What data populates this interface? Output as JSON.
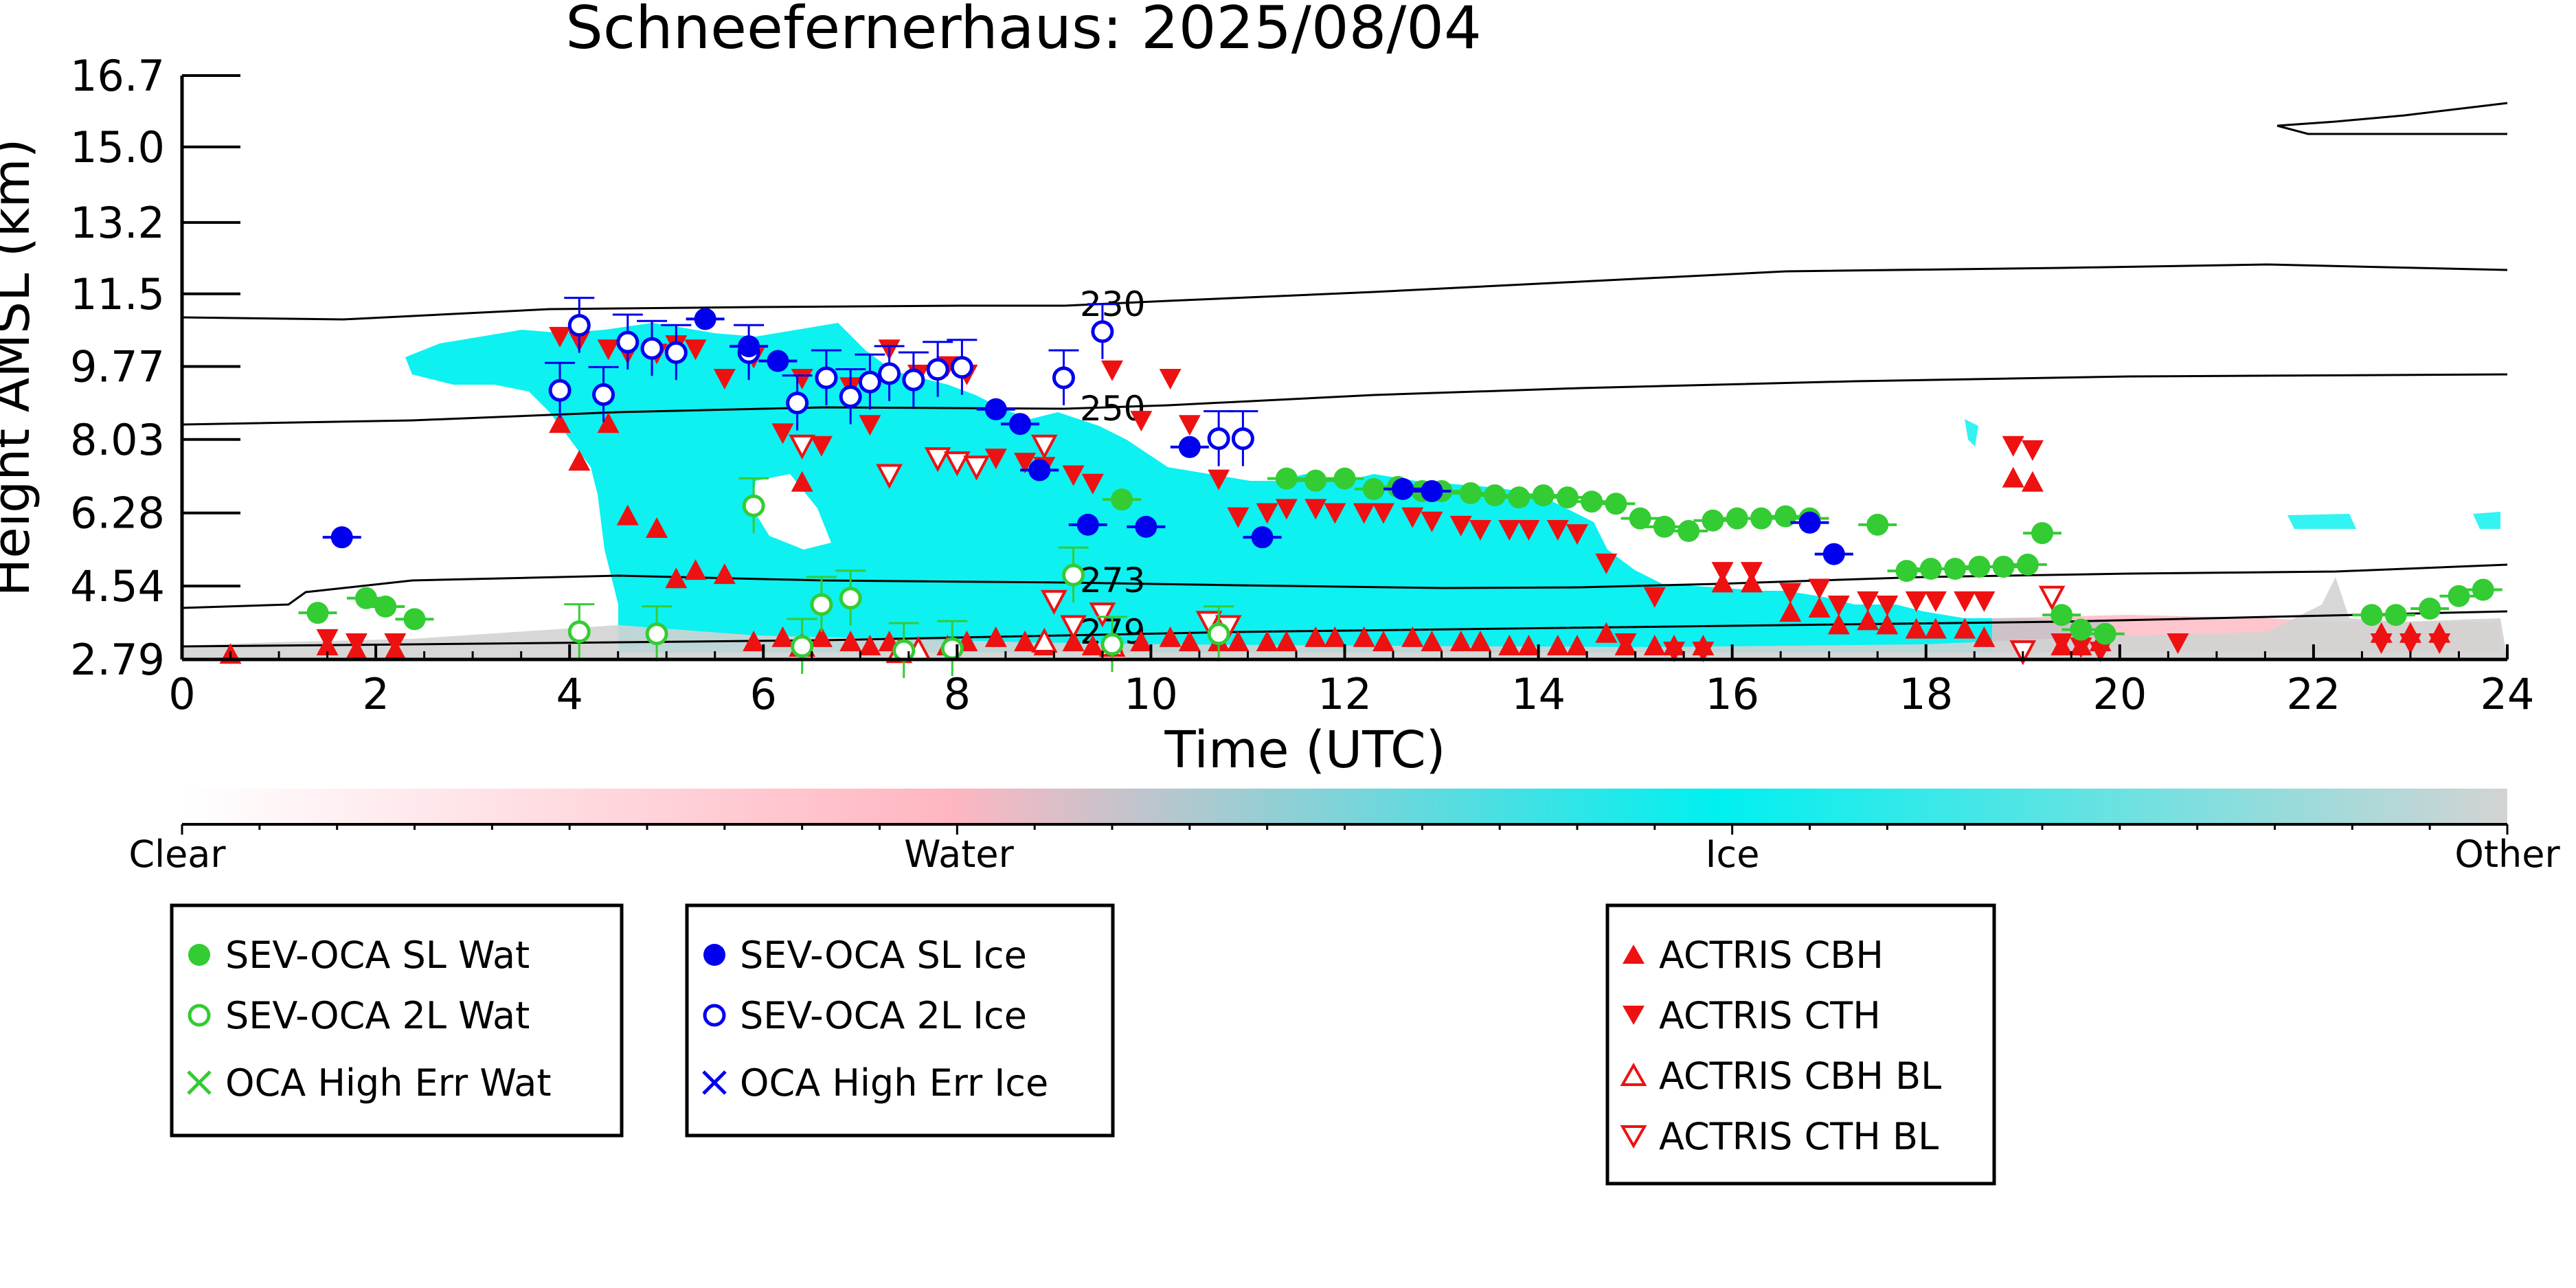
{
  "chart_data": {
    "type": "scatter",
    "title": "Schneefernerhaus: 2025/08/04",
    "xlabel": "Time (UTC)",
    "ylabel": "Height AMSL (km)",
    "xlim": [
      0,
      24
    ],
    "ylim": [
      2.79,
      16.7
    ],
    "x_ticks": [
      "0",
      "2",
      "4",
      "6",
      "8",
      "10",
      "12",
      "14",
      "16",
      "18",
      "20",
      "22",
      "24"
    ],
    "y_ticks": [
      "2.79",
      "4.54",
      "6.28",
      "8.03",
      "9.77",
      "11.5",
      "13.2",
      "15.0",
      "16.7"
    ],
    "colorbar": {
      "labels": [
        "Clear",
        "Water",
        "Ice",
        "Other"
      ],
      "colors": {
        "clear": "#ffffff",
        "water": "#ffb6c1",
        "ice": "#00f0f0",
        "other": "#d3d3d3"
      }
    },
    "contour_labels": [
      "230",
      "250",
      "273",
      "279"
    ],
    "legend": {
      "water": [
        {
          "label": "SEV-OCA SL Wat",
          "marker": "filled-circle",
          "color": "#33cc33"
        },
        {
          "label": "SEV-OCA 2L Wat",
          "marker": "open-circle",
          "color": "#33cc33"
        },
        {
          "label": "OCA High Err Wat",
          "marker": "x",
          "color": "#33cc33"
        }
      ],
      "ice": [
        {
          "label": "SEV-OCA SL Ice",
          "marker": "filled-circle",
          "color": "#0000ee"
        },
        {
          "label": "SEV-OCA 2L Ice",
          "marker": "open-circle",
          "color": "#0000ee"
        },
        {
          "label": "OCA High Err Ice",
          "marker": "x",
          "color": "#0000ee"
        }
      ],
      "actris": [
        {
          "label": "ACTRIS CBH",
          "marker": "triangle-up-filled",
          "color": "#ee1111"
        },
        {
          "label": "ACTRIS CTH",
          "marker": "triangle-down-filled",
          "color": "#ee1111"
        },
        {
          "label": "ACTRIS CBH BL",
          "marker": "triangle-up-open",
          "color": "#ee1111"
        },
        {
          "label": "ACTRIS CTH BL",
          "marker": "triangle-down-open",
          "color": "#ee1111"
        }
      ]
    },
    "series": [
      {
        "name": "SEV-OCA SL Wat",
        "x": [
          1.4,
          1.9,
          2.1,
          2.4,
          9.7,
          11.4,
          11.7,
          12.0,
          12.3,
          12.55,
          12.8,
          13.0,
          13.3,
          13.55,
          13.8,
          14.05,
          14.3,
          14.55,
          14.8,
          15.05,
          15.3,
          15.55,
          15.8,
          16.05,
          16.3,
          16.55,
          16.8,
          17.5,
          17.8,
          18.05,
          18.3,
          18.55,
          18.8,
          19.05,
          19.2,
          19.4,
          19.6,
          19.85,
          22.6,
          22.85,
          23.2,
          23.5,
          23.75
        ],
        "y": [
          3.9,
          4.25,
          4.05,
          3.75,
          6.6,
          7.1,
          7.05,
          7.1,
          6.85,
          6.9,
          6.8,
          6.8,
          6.75,
          6.7,
          6.65,
          6.7,
          6.65,
          6.55,
          6.5,
          6.15,
          5.95,
          5.85,
          6.1,
          6.15,
          6.15,
          6.2,
          6.15,
          6.0,
          4.9,
          4.95,
          4.95,
          5.0,
          5.0,
          5.05,
          5.8,
          3.85,
          3.5,
          3.4,
          3.85,
          3.85,
          4.0,
          4.3,
          4.45
        ]
      },
      {
        "name": "SEV-OCA 2L Wat",
        "x": [
          4.1,
          4.9,
          5.9,
          6.4,
          6.6,
          6.9,
          7.45,
          7.95,
          9.2,
          9.6,
          10.7
        ],
        "y": [
          3.45,
          3.4,
          6.45,
          3.1,
          4.1,
          4.25,
          3.0,
          3.05,
          4.8,
          3.15,
          3.4
        ]
      },
      {
        "name": "SEV-OCA SL Ice",
        "x": [
          1.65,
          5.4,
          5.85,
          6.15,
          8.4,
          8.65,
          8.85,
          9.35,
          9.95,
          10.4,
          11.15,
          12.6,
          12.9,
          16.8,
          17.05
        ],
        "y": [
          5.7,
          10.9,
          10.25,
          9.9,
          8.75,
          8.4,
          7.3,
          6.0,
          5.95,
          7.85,
          5.7,
          6.85,
          6.8,
          6.05,
          5.3
        ]
      },
      {
        "name": "SEV-OCA 2L Ice",
        "x": [
          3.9,
          4.1,
          4.35,
          4.6,
          4.85,
          5.1,
          5.85,
          6.35,
          6.65,
          6.9,
          7.1,
          7.3,
          7.55,
          7.8,
          8.05,
          9.1,
          9.5,
          10.7,
          10.95
        ],
        "y": [
          9.2,
          10.75,
          9.1,
          10.35,
          10.2,
          10.1,
          10.1,
          8.9,
          9.5,
          9.05,
          9.4,
          9.6,
          9.45,
          9.7,
          9.75,
          9.5,
          10.6,
          8.05,
          8.05
        ]
      },
      {
        "name": "ACTRIS CBH",
        "x": [
          0.5,
          1.5,
          1.8,
          2.2,
          3.9,
          4.1,
          4.4,
          4.6,
          4.9,
          5.1,
          5.3,
          5.6,
          5.9,
          6.2,
          6.4,
          6.6,
          6.9,
          7.1,
          7.3,
          7.6,
          7.9,
          8.1,
          8.4,
          8.7,
          8.9,
          9.2,
          9.4,
          9.6,
          9.9,
          10.2,
          10.4,
          10.7,
          10.9,
          11.2,
          11.4,
          11.7,
          11.9,
          12.2,
          12.4,
          12.7,
          12.9,
          13.2,
          13.4,
          13.7,
          13.9,
          14.2,
          14.4,
          14.7,
          14.9,
          15.2,
          15.4,
          15.7,
          15.9,
          16.2,
          16.6,
          16.9,
          17.1,
          17.4,
          17.6,
          17.9,
          18.1,
          18.4,
          18.6,
          18.9,
          19.1,
          19.4,
          19.6,
          19.8,
          22.7,
          23.0,
          23.3
        ],
        "y": [
          2.9,
          3.1,
          3.0,
          3.0,
          8.4,
          7.5,
          8.4,
          6.2,
          5.9,
          4.7,
          4.9,
          4.8,
          3.2,
          3.3,
          7.0,
          3.3,
          3.2,
          3.1,
          3.2,
          3.0,
          3.1,
          3.2,
          3.3,
          3.2,
          3.1,
          3.2,
          3.1,
          3.2,
          3.2,
          3.3,
          3.2,
          3.2,
          3.2,
          3.2,
          3.2,
          3.3,
          3.3,
          3.3,
          3.2,
          3.3,
          3.2,
          3.2,
          3.2,
          3.1,
          3.1,
          3.1,
          3.1,
          3.4,
          3.1,
          3.1,
          3.1,
          3.1,
          4.6,
          4.6,
          3.9,
          4.0,
          3.6,
          3.7,
          3.6,
          3.5,
          3.5,
          3.5,
          3.3,
          7.1,
          7.0,
          3.1,
          3.1,
          3.2,
          3.4,
          3.4,
          3.4
        ]
      },
      {
        "name": "ACTRIS CTH",
        "x": [
          1.5,
          1.8,
          2.2,
          3.9,
          4.1,
          4.4,
          4.6,
          4.9,
          5.1,
          5.3,
          5.6,
          5.9,
          6.2,
          6.4,
          6.6,
          6.9,
          7.1,
          7.3,
          7.6,
          7.9,
          8.1,
          8.4,
          8.7,
          8.9,
          9.2,
          9.4,
          9.6,
          9.9,
          10.2,
          10.4,
          10.7,
          10.9,
          11.2,
          11.4,
          11.7,
          11.9,
          12.2,
          12.4,
          12.7,
          12.9,
          13.2,
          13.4,
          13.7,
          13.9,
          14.2,
          14.4,
          14.7,
          14.9,
          15.2,
          15.4,
          15.7,
          15.9,
          16.2,
          16.6,
          16.9,
          17.1,
          17.4,
          17.6,
          17.9,
          18.1,
          18.4,
          18.6,
          18.9,
          19.1,
          19.4,
          19.6,
          19.8,
          20.6,
          22.7,
          23.0,
          23.3
        ],
        "y": [
          3.3,
          3.2,
          3.2,
          10.5,
          10.4,
          10.2,
          10.1,
          10.1,
          10.3,
          10.2,
          9.5,
          10.0,
          8.2,
          9.5,
          7.9,
          9.3,
          8.4,
          10.2,
          9.6,
          9.8,
          9.6,
          7.6,
          7.5,
          7.4,
          7.2,
          7.0,
          9.7,
          8.5,
          9.5,
          8.4,
          7.1,
          6.2,
          6.3,
          6.4,
          6.4,
          6.3,
          6.3,
          6.3,
          6.2,
          6.1,
          6.0,
          5.9,
          5.9,
          5.9,
          5.9,
          5.8,
          5.1,
          3.2,
          4.3,
          3.0,
          3.0,
          4.9,
          4.9,
          4.4,
          4.5,
          4.1,
          4.2,
          4.1,
          4.2,
          4.2,
          4.2,
          4.2,
          7.9,
          7.8,
          3.2,
          3.1,
          3.0,
          3.2,
          3.2,
          3.2,
          3.2
        ]
      },
      {
        "name": "ACTRIS CBH BL",
        "x": [
          6.4,
          7.4,
          7.6,
          8.9,
          9.6
        ],
        "y": [
          3.1,
          2.95,
          3.0,
          3.2,
          3.1
        ]
      },
      {
        "name": "ACTRIS CTH BL",
        "x": [
          6.4,
          7.3,
          7.8,
          8.0,
          8.2,
          8.9,
          9.0,
          9.2,
          9.5,
          10.6,
          10.8,
          19.0,
          19.3
        ],
        "y": [
          7.9,
          7.2,
          7.6,
          7.5,
          7.4,
          7.9,
          4.2,
          3.6,
          3.9,
          3.7,
          3.6,
          3.0,
          4.3
        ]
      }
    ]
  }
}
